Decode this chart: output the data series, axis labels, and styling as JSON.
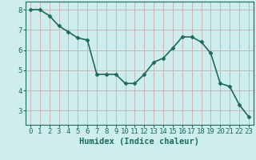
{
  "x": [
    0,
    1,
    2,
    3,
    4,
    5,
    6,
    7,
    8,
    9,
    10,
    11,
    12,
    13,
    14,
    15,
    16,
    17,
    18,
    19,
    20,
    21,
    22,
    23
  ],
  "y": [
    8.0,
    8.0,
    7.7,
    7.2,
    6.9,
    6.6,
    6.5,
    4.8,
    4.8,
    4.8,
    4.35,
    4.35,
    4.8,
    5.4,
    5.6,
    6.1,
    6.65,
    6.65,
    6.4,
    5.85,
    4.35,
    4.2,
    3.3,
    2.7
  ],
  "line_color": "#1a6b5a",
  "marker": "D",
  "marker_size": 2.5,
  "bg_color": "#ceeeed",
  "grid_color": "#c8b8b8",
  "xlabel": "Humidex (Indice chaleur)",
  "xlim": [
    -0.5,
    23.5
  ],
  "ylim": [
    2.3,
    8.4
  ],
  "yticks": [
    3,
    4,
    5,
    6,
    7,
    8
  ],
  "xticks": [
    0,
    1,
    2,
    3,
    4,
    5,
    6,
    7,
    8,
    9,
    10,
    11,
    12,
    13,
    14,
    15,
    16,
    17,
    18,
    19,
    20,
    21,
    22,
    23
  ],
  "xlabel_fontsize": 7.5,
  "tick_fontsize": 6.5,
  "line_width": 1.2
}
